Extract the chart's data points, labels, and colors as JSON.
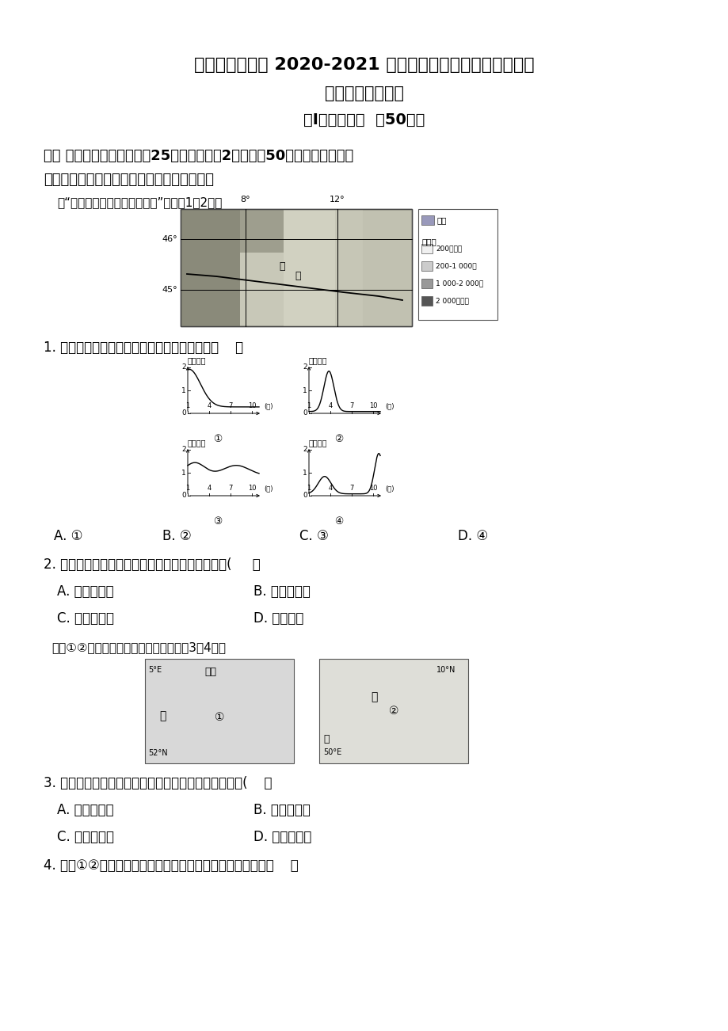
{
  "title1": "江苏省如皋中学 2020-2021 学年度第一学期第二次阶段考试",
  "title2": "高二地理（选修）",
  "title3": "第I卷（选择题  共50分）",
  "section1_line1": "一、 单项选择题：本大题共25小题，每小题2分，共计50分。在每小题给出",
  "section1_line2": "的四个选项中，只有一项是符合题目要求的。",
  "intro1": "读“欧洲南部意大利波河流域图”，完成1～2题。",
  "q1_text": "1. 下图中，能正确表示波河年径流量变化的是（    ）",
  "q1_A": "A. ①",
  "q1_B": "B. ②",
  "q1_C": "C. ③",
  "q1_D": "D. ④",
  "q2_text": "2. 波河流域没有大面积种植水稻的主要自然原因是(     ）",
  "q2_A": "A. 平原面积小",
  "q2_B": "B. 热量条件差",
  "q2_C": "C. 雨热不同期",
  "q2_D": "D. 土壤贫瘠",
  "intro2": "下图①②为世界局部区域图。读图，完成3～4题。",
  "q3_text": "3. 图中甲、乙两地发展种植业的主要限制性因素分别是(    ）",
  "q3_A": "A. 光热、水源",
  "q3_B": "B. 土壤、水源",
  "q3_C": "C. 地形、土壤",
  "q3_D": "D. 地形、河流",
  "q4_text": "4. 关于①②所示区域的河流和植被特点，下列说法正确的是（    ）",
  "bg_color": "#ffffff",
  "text_color": "#000000",
  "map1_lat_labels": [
    "46°",
    "45°"
  ],
  "map1_lon_labels": [
    "8°",
    "12°"
  ],
  "legend_water_label": "水域",
  "legend_elev_title": "高度表",
  "legend_elev_labels": [
    "200米以下",
    "200-1 000米",
    "1 000-2 000米",
    "2 000米以上"
  ],
  "legend_elev_colors": [
    "#f0f0f0",
    "#cccccc",
    "#999999",
    "#555555"
  ],
  "chart_y_label": "相对流量",
  "chart_x_label": "(月)",
  "chart_x_ticks": [
    "1",
    "4",
    "7",
    "10"
  ],
  "chart_y_ticks": [
    "0",
    "1",
    "2"
  ],
  "chart_labels": [
    "①",
    "②",
    "③",
    "④"
  ],
  "map2_labels": [
    "①",
    "②"
  ],
  "map2_coords1": [
    "5°E",
    "52°N"
  ],
  "map2_coords2": [
    "50°E",
    "10°N"
  ],
  "map2_text1": [
    "北海",
    "甲"
  ],
  "map2_text2": [
    "海",
    "乙"
  ]
}
